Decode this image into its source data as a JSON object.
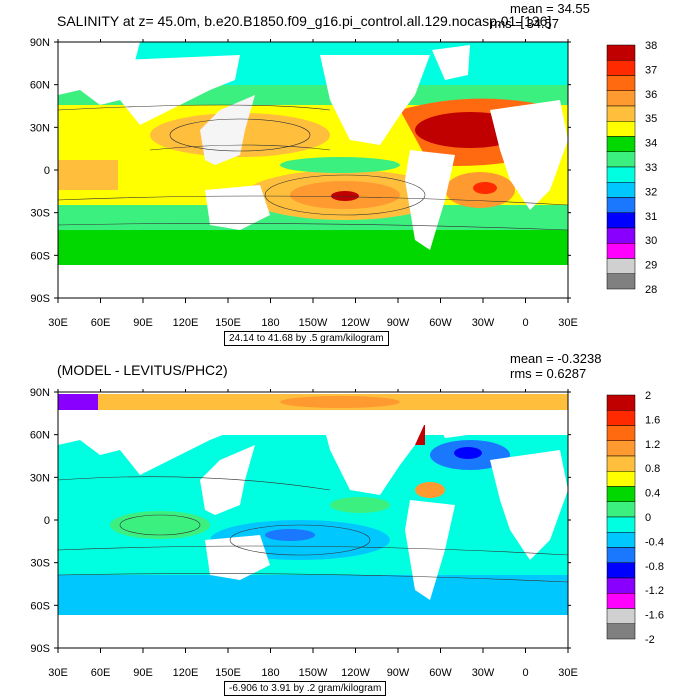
{
  "charts": [
    {
      "title": "SALINITY at z=  45.0m, b.e20.B1850.f09_g16.pi_control.all.129.nocasp.01 [136]",
      "mean_text": "mean = 34.55",
      "rms_text": "rms = 34.57",
      "info_text": "24.14 to 41.68 by .5 gram/kilogram",
      "lon_ticks": [
        "30E",
        "60E",
        "90E",
        "120E",
        "150E",
        "180",
        "150W",
        "120W",
        "90W",
        "60W",
        "30W",
        "0",
        "30E"
      ],
      "lat_ticks": [
        "90N",
        "60N",
        "30N",
        "0",
        "30S",
        "60S",
        "90S"
      ],
      "colorbar_labels": [
        "38",
        "37",
        "36",
        "35",
        "34",
        "33",
        "32",
        "31",
        "30",
        "29",
        "28"
      ],
      "colorbar_colors": [
        "#c00000",
        "#ff2a00",
        "#ff6a10",
        "#ff9a30",
        "#ffbf3c",
        "#ffff00",
        "#00d800",
        "#3cf080",
        "#00ffe0",
        "#00c8ff",
        "#1a78ff",
        "#0000ff",
        "#8a00ff",
        "#ff00ff",
        "#d0d0d0",
        "#808080"
      ]
    },
    {
      "title": "(MODEL - LEVITUS/PHC2)",
      "mean_text": "mean = -0.3238",
      "rms_text": "rms = 0.6287",
      "info_text": "-6.906 to 3.91 by .2 gram/kilogram",
      "lon_ticks": [
        "30E",
        "60E",
        "90E",
        "120E",
        "150E",
        "180",
        "150W",
        "120W",
        "90W",
        "60W",
        "30W",
        "0",
        "30E"
      ],
      "lat_ticks": [
        "90N",
        "60N",
        "30N",
        "0",
        "30S",
        "60S",
        "90S"
      ],
      "colorbar_labels": [
        "2",
        "1.6",
        "1.2",
        "0.8",
        "0.4",
        "0",
        "-0.4",
        "-0.8",
        "-1.2",
        "-1.6",
        "-2"
      ],
      "colorbar_colors": [
        "#c00000",
        "#ff2a00",
        "#ff6a10",
        "#ff9a30",
        "#ffbf3c",
        "#ffff00",
        "#00d800",
        "#3cf080",
        "#00ffe0",
        "#00c8ff",
        "#1a78ff",
        "#0000ff",
        "#8a00ff",
        "#ff00ff",
        "#d0d0d0",
        "#808080"
      ]
    }
  ],
  "chart_data": [
    {
      "type": "heatmap",
      "title": "SALINITY at z=  45.0m, b.e20.B1850.f09_g16.pi_control.all.129.nocasp.01 [136]",
      "x_ticks": [
        "30E",
        "60E",
        "90E",
        "120E",
        "150E",
        "180",
        "150W",
        "120W",
        "90W",
        "60W",
        "30W",
        "0",
        "30E"
      ],
      "y_ticks": [
        "90N",
        "60N",
        "30N",
        "0",
        "30S",
        "60S",
        "90S"
      ],
      "colorbar_levels": [
        38,
        37,
        36,
        35,
        34,
        33,
        32,
        31,
        30,
        29,
        28
      ],
      "mean": 34.55,
      "rms": 34.57,
      "contour_min": 24.14,
      "contour_max": 41.68,
      "contour_interval": 0.5,
      "units": "gram/kilogram"
    },
    {
      "type": "heatmap",
      "title": "(MODEL - LEVITUS/PHC2)",
      "x_ticks": [
        "30E",
        "60E",
        "90E",
        "120E",
        "150E",
        "180",
        "150W",
        "120W",
        "90W",
        "60W",
        "30W",
        "0",
        "30E"
      ],
      "y_ticks": [
        "90N",
        "60N",
        "30N",
        "0",
        "30S",
        "60S",
        "90S"
      ],
      "colorbar_levels": [
        2,
        1.6,
        1.2,
        0.8,
        0.4,
        0,
        -0.4,
        -0.8,
        -1.2,
        -1.6,
        -2
      ],
      "mean": -0.3238,
      "rms": 0.6287,
      "contour_min": -6.906,
      "contour_max": 3.91,
      "contour_interval": 0.2,
      "units": "gram/kilogram"
    }
  ]
}
